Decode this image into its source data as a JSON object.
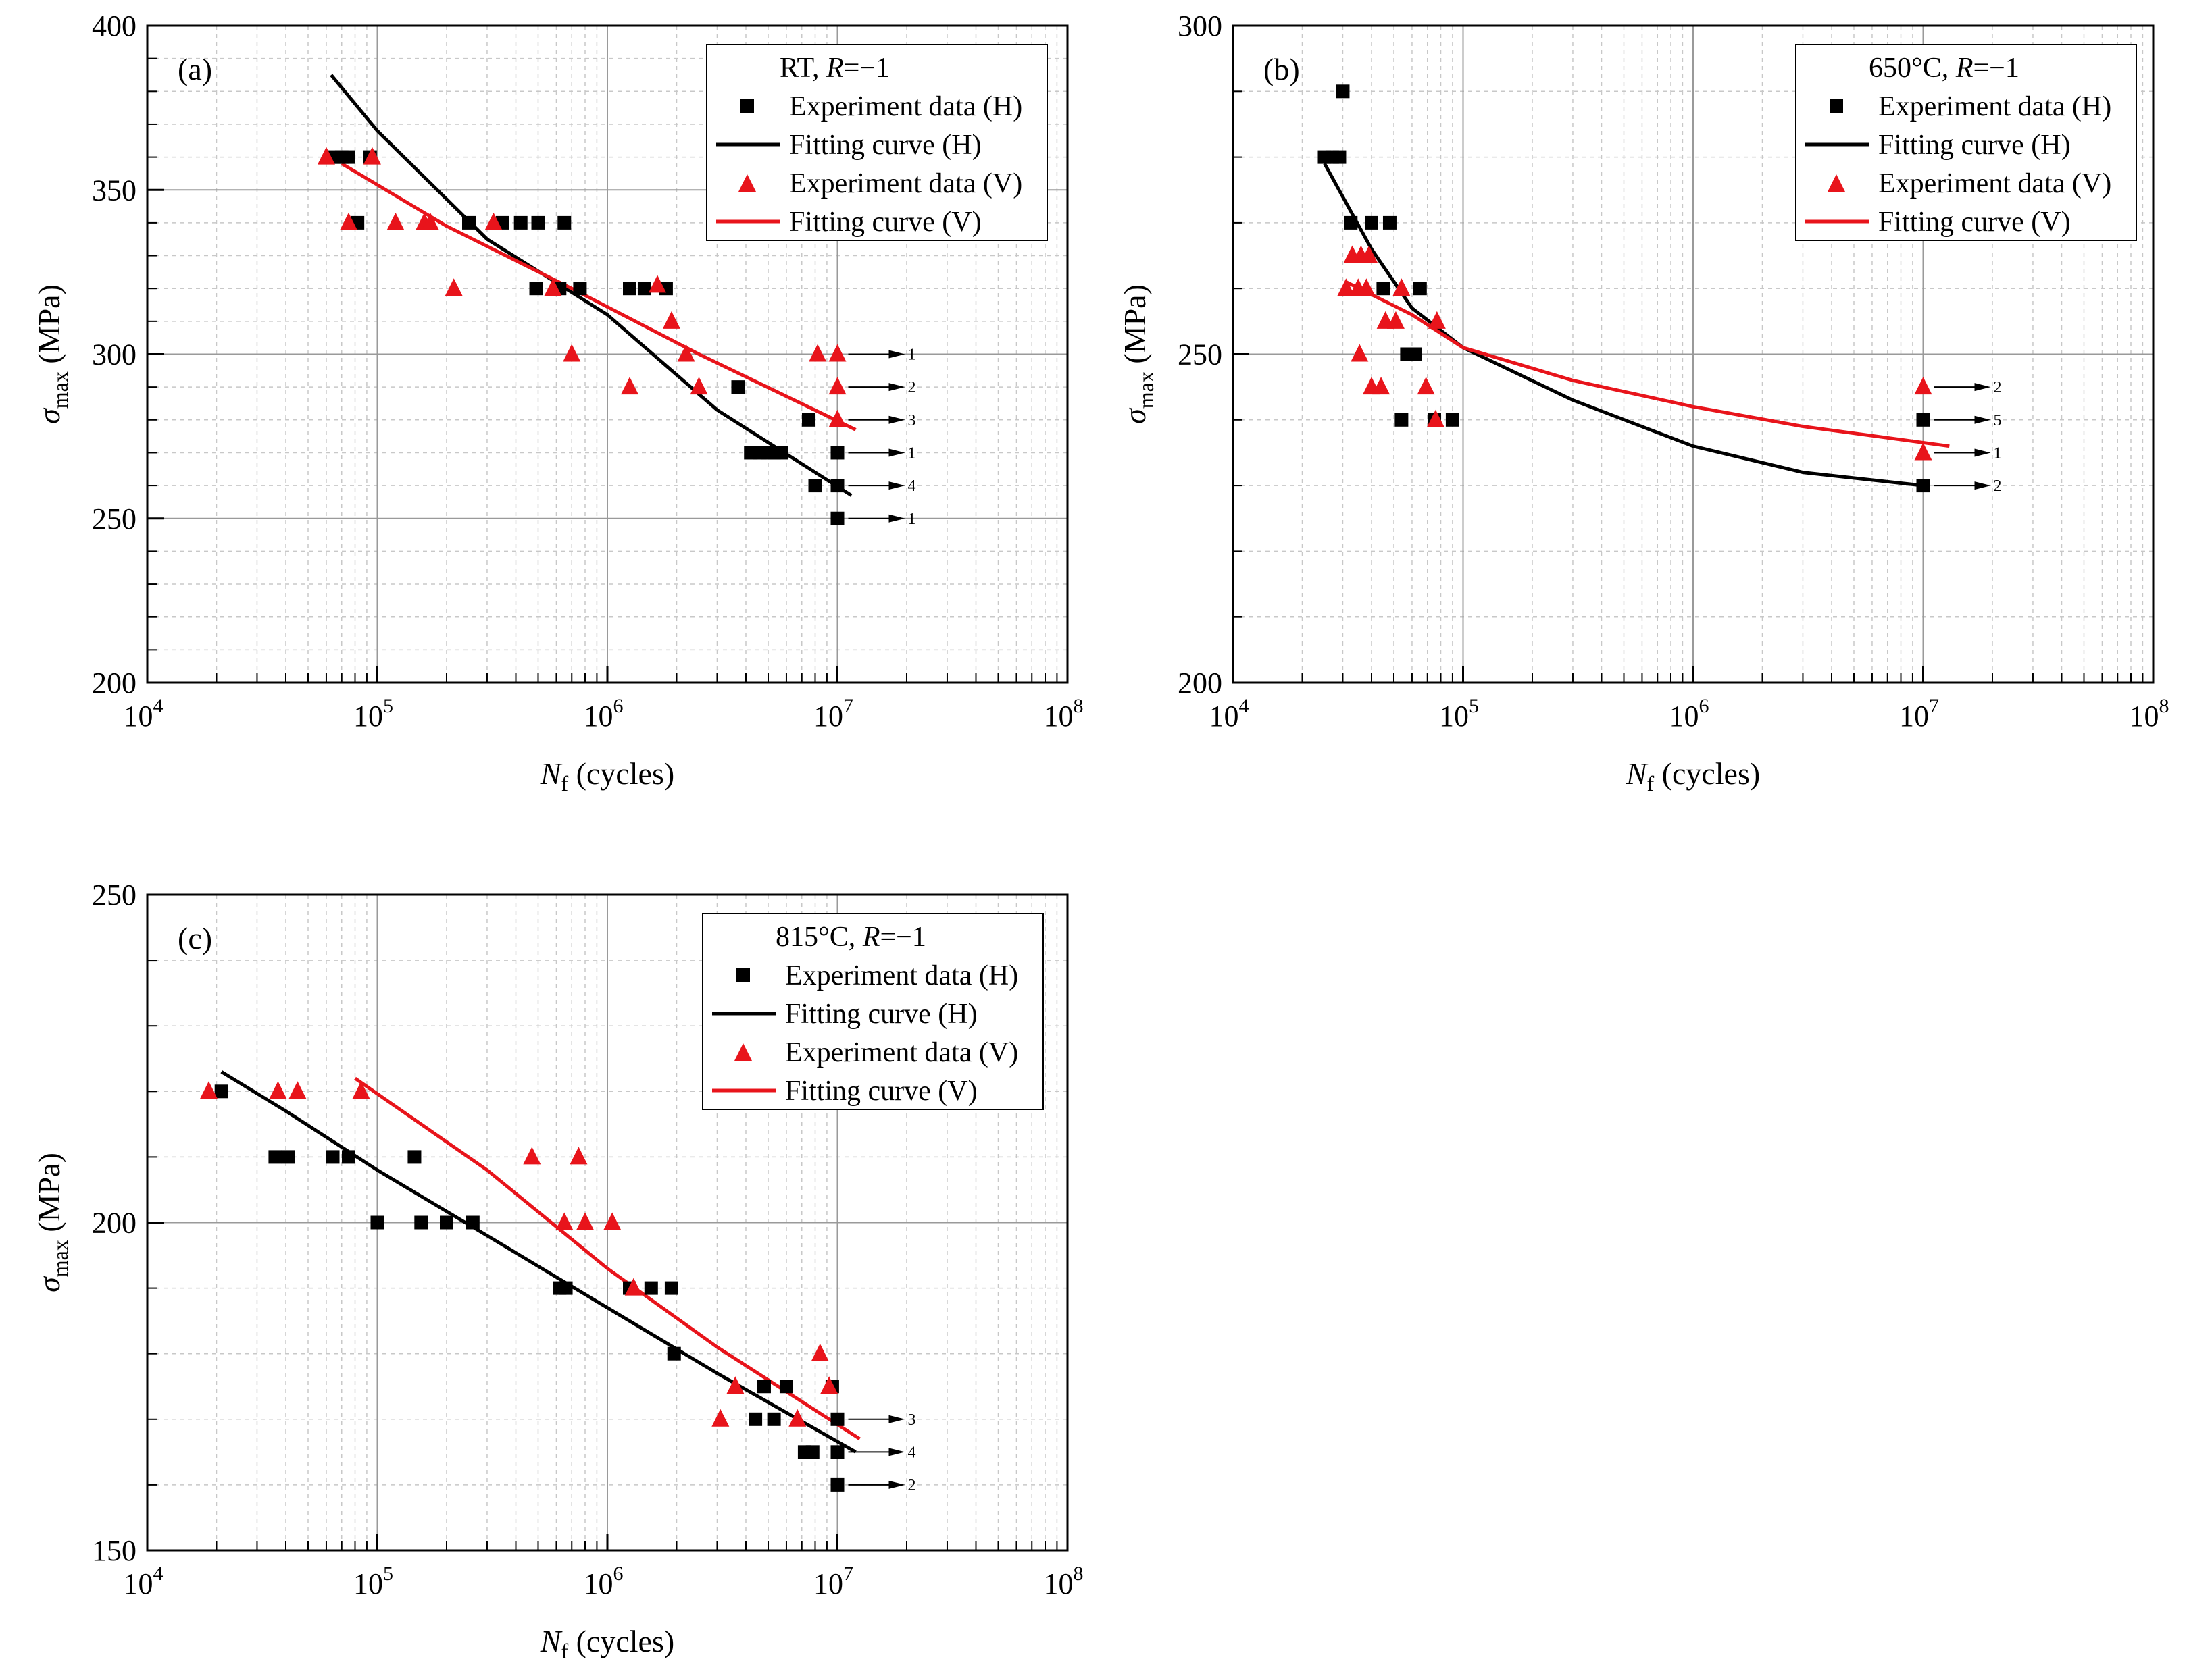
{
  "colors": {
    "H": "#000000",
    "V": "#e8141b",
    "grid_major": "#9a9a9a",
    "grid_minor": "#c8c8c8"
  },
  "icons": {
    "H_marker": "square-marker",
    "V_marker": "triangle-marker",
    "runout": "arrow-right-icon"
  },
  "chart_data": [
    {
      "type": "scatter",
      "panel_label": "(a)",
      "legend_title": "RT, R=−1",
      "legend_entries": [
        "Experiment data (H)",
        "Fitting curve (H)",
        "Experiment data (V)",
        "Fitting curve (V)"
      ],
      "legend_position": "top-right",
      "xlabel": "N_f (cycles)",
      "ylabel": "σ_max (MPa)",
      "xscale": "log",
      "xlim": [
        10000,
        100000000
      ],
      "ylim": [
        200,
        400
      ],
      "xticks": [
        10000,
        100000,
        1000000,
        10000000,
        100000000
      ],
      "xtick_labels": [
        [
          "10",
          "4"
        ],
        [
          "10",
          "5"
        ],
        [
          "10",
          "6"
        ],
        [
          "10",
          "7"
        ],
        [
          "10",
          "8"
        ]
      ],
      "yticks": [
        200,
        250,
        300,
        350,
        400
      ],
      "series": [
        {
          "name": "Experiment data (H)",
          "marker": "square",
          "color": "#000000",
          "points": [
            [
              65000,
              360
            ],
            [
              70000,
              360
            ],
            [
              75000,
              360
            ],
            [
              82000,
              340
            ],
            [
              93000,
              360
            ],
            [
              250000,
              340
            ],
            [
              350000,
              340
            ],
            [
              420000,
              340
            ],
            [
              500000,
              340
            ],
            [
              650000,
              340
            ],
            [
              490000,
              320
            ],
            [
              620000,
              320
            ],
            [
              760000,
              320
            ],
            [
              1250000,
              320
            ],
            [
              1450000,
              320
            ],
            [
              1800000,
              320
            ],
            [
              3700000,
              290
            ],
            [
              4200000,
              270
            ],
            [
              4600000,
              270
            ],
            [
              5000000,
              270
            ],
            [
              5300000,
              270
            ],
            [
              5700000,
              270
            ],
            [
              7500000,
              280
            ],
            [
              8000000,
              260
            ],
            [
              10000000,
              270
            ],
            [
              10000000,
              260
            ],
            [
              10000000,
              250
            ]
          ]
        },
        {
          "name": "Fitting curve (H)",
          "line": true,
          "color": "#000000",
          "points": [
            [
              63000,
              385
            ],
            [
              100000,
              368
            ],
            [
              300000,
              335
            ],
            [
              1000000,
              312
            ],
            [
              3000000,
              283
            ],
            [
              11500000,
              257
            ]
          ]
        },
        {
          "name": "Experiment data (V)",
          "marker": "triangle",
          "color": "#e8141b",
          "points": [
            [
              60000,
              360
            ],
            [
              95000,
              360
            ],
            [
              75000,
              340
            ],
            [
              120000,
              340
            ],
            [
              160000,
              340
            ],
            [
              170000,
              340
            ],
            [
              215000,
              320
            ],
            [
              320000,
              340
            ],
            [
              580000,
              320
            ],
            [
              700000,
              300
            ],
            [
              1650000,
              321
            ],
            [
              1250000,
              290
            ],
            [
              1900000,
              310
            ],
            [
              2200000,
              300
            ],
            [
              2500000,
              290
            ],
            [
              8200000,
              300
            ],
            [
              10000000,
              300
            ],
            [
              10000000,
              290
            ],
            [
              10000000,
              280
            ]
          ]
        },
        {
          "name": "Fitting curve (V)",
          "line": true,
          "color": "#e8141b",
          "points": [
            [
              70000,
              358
            ],
            [
              200000,
              339
            ],
            [
              700000,
              320
            ],
            [
              2500000,
              300
            ],
            [
              12000000,
              277
            ]
          ]
        }
      ],
      "runouts": [
        {
          "y": 300,
          "count": "1",
          "series": "V"
        },
        {
          "y": 290,
          "count": "2",
          "series": "V"
        },
        {
          "y": 280,
          "count": "3",
          "series": "V"
        },
        {
          "y": 270,
          "count": "1",
          "series": "H"
        },
        {
          "y": 260,
          "count": "4",
          "series": "H"
        },
        {
          "y": 250,
          "count": "1",
          "series": "H"
        }
      ]
    },
    {
      "type": "scatter",
      "panel_label": "(b)",
      "legend_title": "650°C, R=−1",
      "legend_entries": [
        "Experiment data (H)",
        "Fitting curve (H)",
        "Experiment data (V)",
        "Fitting curve (V)"
      ],
      "legend_position": "top-right",
      "xlabel": "N_f (cycles)",
      "ylabel": "σ_max (MPa)",
      "xscale": "log",
      "xlim": [
        10000,
        100000000
      ],
      "ylim": [
        200,
        300
      ],
      "xticks": [
        10000,
        100000,
        1000000,
        10000000,
        100000000
      ],
      "xtick_labels": [
        [
          "10",
          "4"
        ],
        [
          "10",
          "5"
        ],
        [
          "10",
          "6"
        ],
        [
          "10",
          "7"
        ],
        [
          "10",
          "8"
        ]
      ],
      "yticks": [
        200,
        250,
        300
      ],
      "series": [
        {
          "name": "Experiment data (H)",
          "marker": "square",
          "color": "#000000",
          "points": [
            [
              25000,
              280
            ],
            [
              27000,
              280
            ],
            [
              29000,
              280
            ],
            [
              30000,
              290
            ],
            [
              32500,
              270
            ],
            [
              40000,
              270
            ],
            [
              48000,
              270
            ],
            [
              45000,
              260
            ],
            [
              65000,
              260
            ],
            [
              57000,
              250
            ],
            [
              62000,
              250
            ],
            [
              54000,
              240
            ],
            [
              75000,
              240
            ],
            [
              90000,
              240
            ],
            [
              10000000,
              240
            ],
            [
              10000000,
              230
            ]
          ]
        },
        {
          "name": "Fitting curve (H)",
          "line": true,
          "color": "#000000",
          "points": [
            [
              25000,
              279
            ],
            [
              40000,
              266
            ],
            [
              60000,
              257
            ],
            [
              100000,
              251
            ],
            [
              300000,
              243
            ],
            [
              1000000,
              236
            ],
            [
              3000000,
              232
            ],
            [
              10000000,
              230
            ]
          ]
        },
        {
          "name": "Experiment data (V)",
          "marker": "triangle",
          "color": "#e8141b",
          "points": [
            [
              31000,
              260
            ],
            [
              33000,
              265
            ],
            [
              35000,
              260
            ],
            [
              36000,
              265
            ],
            [
              39000,
              265
            ],
            [
              38000,
              260
            ],
            [
              35500,
              250
            ],
            [
              40000,
              245
            ],
            [
              44000,
              245
            ],
            [
              46000,
              255
            ],
            [
              51000,
              255
            ],
            [
              54000,
              260
            ],
            [
              69000,
              245
            ],
            [
              77000,
              255
            ],
            [
              76000,
              240
            ],
            [
              10000000,
              245
            ],
            [
              10000000,
              235
            ]
          ]
        },
        {
          "name": "Fitting curve (V)",
          "line": true,
          "color": "#e8141b",
          "points": [
            [
              31000,
              261
            ],
            [
              60000,
              256
            ],
            [
              100000,
              251
            ],
            [
              300000,
              246
            ],
            [
              1000000,
              242
            ],
            [
              3000000,
              239
            ],
            [
              13000000,
              236
            ]
          ]
        }
      ],
      "runouts": [
        {
          "y": 245,
          "count": "2",
          "series": "V"
        },
        {
          "y": 240,
          "count": "5",
          "series": "H"
        },
        {
          "y": 235,
          "count": "1",
          "series": "V"
        },
        {
          "y": 230,
          "count": "2",
          "series": "H"
        }
      ]
    },
    {
      "type": "scatter",
      "panel_label": "(c)",
      "legend_title": "815°C, R=−1",
      "legend_entries": [
        "Experiment data (H)",
        "Fitting curve (H)",
        "Experiment data (V)",
        "Fitting curve (V)"
      ],
      "legend_position": "top-right",
      "xlabel": "N_f (cycles)",
      "ylabel": "σ_max (MPa)",
      "xscale": "log",
      "xlim": [
        10000,
        100000000
      ],
      "ylim": [
        150,
        250
      ],
      "xticks": [
        10000,
        100000,
        1000000,
        10000000,
        100000000
      ],
      "xtick_labels": [
        [
          "10",
          "4"
        ],
        [
          "10",
          "5"
        ],
        [
          "10",
          "6"
        ],
        [
          "10",
          "7"
        ],
        [
          "10",
          "8"
        ]
      ],
      "yticks": [
        150,
        200,
        250
      ],
      "series": [
        {
          "name": "Experiment data (H)",
          "marker": "square",
          "color": "#000000",
          "points": [
            [
              21000,
              220
            ],
            [
              36000,
              210
            ],
            [
              41000,
              210
            ],
            [
              64000,
              210
            ],
            [
              75000,
              210
            ],
            [
              145000,
              210
            ],
            [
              100000,
              200
            ],
            [
              155000,
              200
            ],
            [
              200000,
              200
            ],
            [
              260000,
              200
            ],
            [
              620000,
              190
            ],
            [
              660000,
              190
            ],
            [
              1250000,
              190
            ],
            [
              1550000,
              190
            ],
            [
              1900000,
              190
            ],
            [
              1950000,
              180
            ],
            [
              4400000,
              170
            ],
            [
              4800000,
              175
            ],
            [
              5300000,
              170
            ],
            [
              6000000,
              175
            ],
            [
              7200000,
              165
            ],
            [
              7800000,
              165
            ],
            [
              9500000,
              175
            ],
            [
              10000000,
              170
            ],
            [
              10000000,
              165
            ],
            [
              10000000,
              160
            ]
          ]
        },
        {
          "name": "Fitting curve (H)",
          "line": true,
          "color": "#000000",
          "points": [
            [
              21000,
              223
            ],
            [
              40000,
              217
            ],
            [
              100000,
              208
            ],
            [
              300000,
              198
            ],
            [
              1000000,
              187
            ],
            [
              3000000,
              177
            ],
            [
              12000000,
              165
            ]
          ]
        },
        {
          "name": "Experiment data (V)",
          "marker": "triangle",
          "color": "#e8141b",
          "points": [
            [
              18500,
              220
            ],
            [
              37000,
              220
            ],
            [
              45000,
              220
            ],
            [
              85000,
              220
            ],
            [
              470000,
              210
            ],
            [
              750000,
              210
            ],
            [
              650000,
              200
            ],
            [
              800000,
              200
            ],
            [
              1050000,
              200
            ],
            [
              1300000,
              190
            ],
            [
              3100000,
              170
            ],
            [
              3600000,
              175
            ],
            [
              6700000,
              170
            ],
            [
              8400000,
              180
            ],
            [
              9200000,
              175
            ]
          ]
        },
        {
          "name": "Fitting curve (V)",
          "line": true,
          "color": "#e8141b",
          "points": [
            [
              80000,
              222
            ],
            [
              300000,
              208
            ],
            [
              1000000,
              193
            ],
            [
              3000000,
              181
            ],
            [
              12500000,
              167
            ]
          ]
        }
      ],
      "runouts": [
        {
          "y": 170,
          "count": "3",
          "series": "H"
        },
        {
          "y": 165,
          "count": "4",
          "series": "H"
        },
        {
          "y": 160,
          "count": "2",
          "series": "H"
        }
      ]
    }
  ]
}
